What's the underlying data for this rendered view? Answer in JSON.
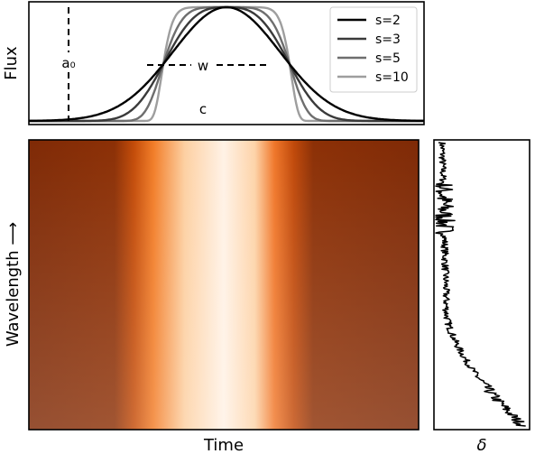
{
  "chart_data": [
    {
      "type": "line",
      "ylabel": "Flux",
      "x_range": [
        -3.6,
        3.6
      ],
      "series": [
        {
          "name": "s=2",
          "shape": 2,
          "color": "#000000"
        },
        {
          "name": "s=3",
          "shape": 3,
          "color": "#3a3a3a"
        },
        {
          "name": "s=5",
          "shape": 5,
          "color": "#6e6e6e"
        },
        {
          "name": "s=10",
          "shape": 10,
          "color": "#9e9e9e"
        }
      ],
      "annotations": {
        "a0": {
          "label": "a₀",
          "x": -2.4
        },
        "w": {
          "label": "w",
          "x_range": [
            -1.15,
            1.15
          ]
        },
        "c": {
          "label": "c",
          "x": 0
        }
      },
      "legend": "top-right",
      "grid": false
    },
    {
      "type": "heatmap",
      "xlabel": "Time",
      "ylabel": "Wavelength ⟶",
      "colormap": "Oranges",
      "grid": false
    },
    {
      "type": "line",
      "xlabel": "δ",
      "description_of_trend": "noisy trace, increasing toward bottom",
      "grid": false
    }
  ]
}
